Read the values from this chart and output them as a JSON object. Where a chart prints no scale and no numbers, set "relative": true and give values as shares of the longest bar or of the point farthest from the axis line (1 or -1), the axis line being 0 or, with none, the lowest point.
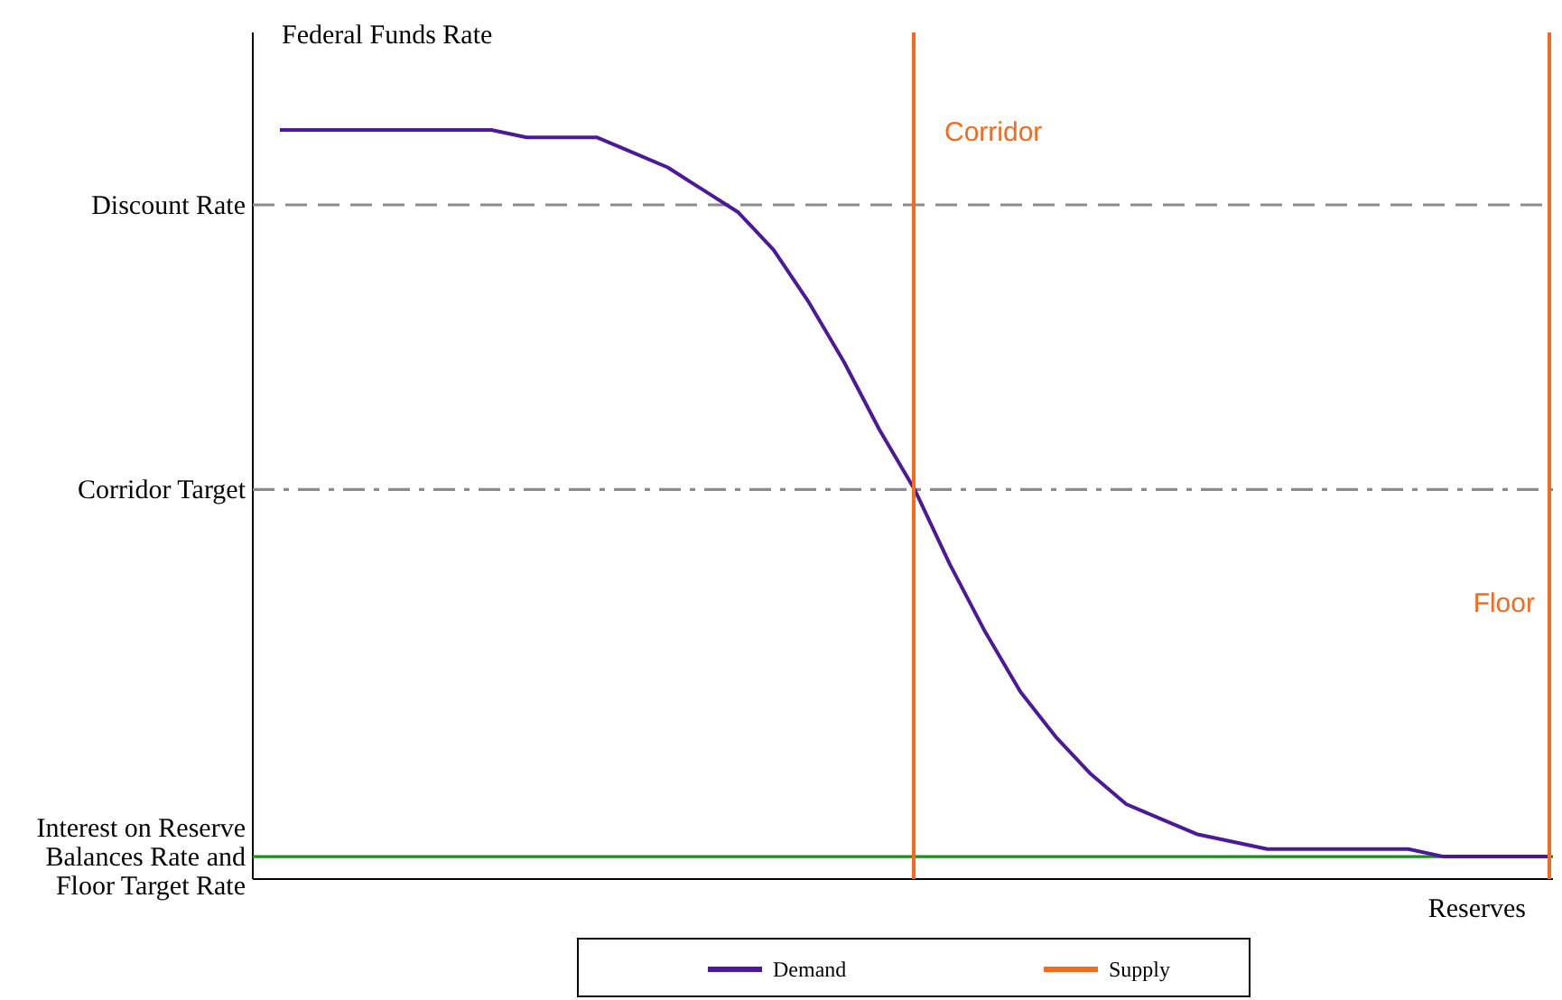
{
  "chart_data": {
    "type": "line",
    "relative": true,
    "ylabel": "Federal Funds Rate",
    "xlabel": "Reserves",
    "legend": "bottom",
    "categories": [
      null,
      null,
      null,
      null,
      null,
      null,
      null,
      null,
      null,
      null,
      null,
      null,
      null,
      null,
      null,
      null,
      null,
      null,
      null,
      null,
      null,
      null,
      null,
      null,
      null,
      null,
      null,
      null,
      null,
      null,
      null,
      null,
      null,
      null,
      null,
      null,
      null
    ],
    "series": [
      {
        "name": "Demand",
        "color": "#4b1a99",
        "values": [
          1.0,
          1.0,
          1.0,
          1.0,
          1.0,
          1.0,
          1.0,
          0.99,
          0.99,
          0.99,
          0.97,
          0.95,
          0.92,
          0.89,
          0.84,
          0.77,
          0.69,
          0.6,
          0.52,
          0.42,
          0.33,
          0.25,
          0.19,
          0.14,
          0.1,
          0.08,
          0.06,
          0.05,
          0.04,
          0.04,
          0.04,
          0.04,
          0.04,
          0.03,
          0.03,
          0.03,
          0.03
        ]
      },
      {
        "name": "Supply",
        "color": "#f26b21",
        "values": [
          null,
          null,
          null,
          null,
          null,
          null,
          null,
          null,
          null,
          null,
          null,
          null,
          null,
          null,
          null,
          null,
          null,
          null,
          null,
          null,
          null,
          null,
          null,
          null,
          null,
          null,
          null,
          null,
          null,
          null,
          null,
          null,
          null,
          null,
          null,
          null,
          null
        ]
      }
    ],
    "annotations": [
      "Corridor",
      "Floor"
    ],
    "ref_lines": [
      {
        "axis": "y",
        "value": 0.9,
        "label": "Discount Rate",
        "color": "#8c8c8c",
        "line_style": "dashed"
      },
      {
        "axis": "y",
        "value": 0.52,
        "label": "Corridor Target",
        "color": "#8c8c8c",
        "line_style": "dotted"
      },
      {
        "axis": "y",
        "value": 0.03,
        "label": "Interest on Reserve Balances Rate and Floor Target Rate",
        "color": "#1f8a1f",
        "line_style": "solid"
      }
    ]
  }
}
